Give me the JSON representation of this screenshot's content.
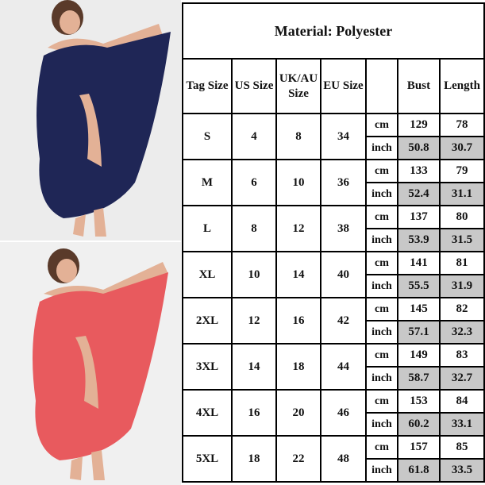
{
  "photos": [
    {
      "name": "navy-wrap-dress-photo",
      "dress_color": "#1f2656"
    },
    {
      "name": "coral-wrap-dress-photo",
      "dress_color": "#e85a5e"
    }
  ],
  "table": {
    "title": "Material: Polyester",
    "headers": [
      "Tag Size",
      "US Size",
      "UK/AU Size",
      "EU Size",
      "",
      "Bust",
      "Length"
    ],
    "units": [
      "cm",
      "inch"
    ],
    "highlight_color": "#c8c8c8",
    "rows": [
      {
        "tag": "S",
        "us": "4",
        "uk": "8",
        "eu": "34",
        "cm": {
          "bust": "129",
          "length": "78"
        },
        "inch": {
          "bust": "50.8",
          "length": "30.7"
        }
      },
      {
        "tag": "M",
        "us": "6",
        "uk": "10",
        "eu": "36",
        "cm": {
          "bust": "133",
          "length": "79"
        },
        "inch": {
          "bust": "52.4",
          "length": "31.1"
        }
      },
      {
        "tag": "L",
        "us": "8",
        "uk": "12",
        "eu": "38",
        "cm": {
          "bust": "137",
          "length": "80"
        },
        "inch": {
          "bust": "53.9",
          "length": "31.5"
        }
      },
      {
        "tag": "XL",
        "us": "10",
        "uk": "14",
        "eu": "40",
        "cm": {
          "bust": "141",
          "length": "81"
        },
        "inch": {
          "bust": "55.5",
          "length": "31.9"
        }
      },
      {
        "tag": "2XL",
        "us": "12",
        "uk": "16",
        "eu": "42",
        "cm": {
          "bust": "145",
          "length": "82"
        },
        "inch": {
          "bust": "57.1",
          "length": "32.3"
        }
      },
      {
        "tag": "3XL",
        "us": "14",
        "uk": "18",
        "eu": "44",
        "cm": {
          "bust": "149",
          "length": "83"
        },
        "inch": {
          "bust": "58.7",
          "length": "32.7"
        }
      },
      {
        "tag": "4XL",
        "us": "16",
        "uk": "20",
        "eu": "46",
        "cm": {
          "bust": "153",
          "length": "84"
        },
        "inch": {
          "bust": "60.2",
          "length": "33.1"
        }
      },
      {
        "tag": "5XL",
        "us": "18",
        "uk": "22",
        "eu": "48",
        "cm": {
          "bust": "157",
          "length": "85"
        },
        "inch": {
          "bust": "61.8",
          "length": "33.5"
        }
      }
    ]
  }
}
